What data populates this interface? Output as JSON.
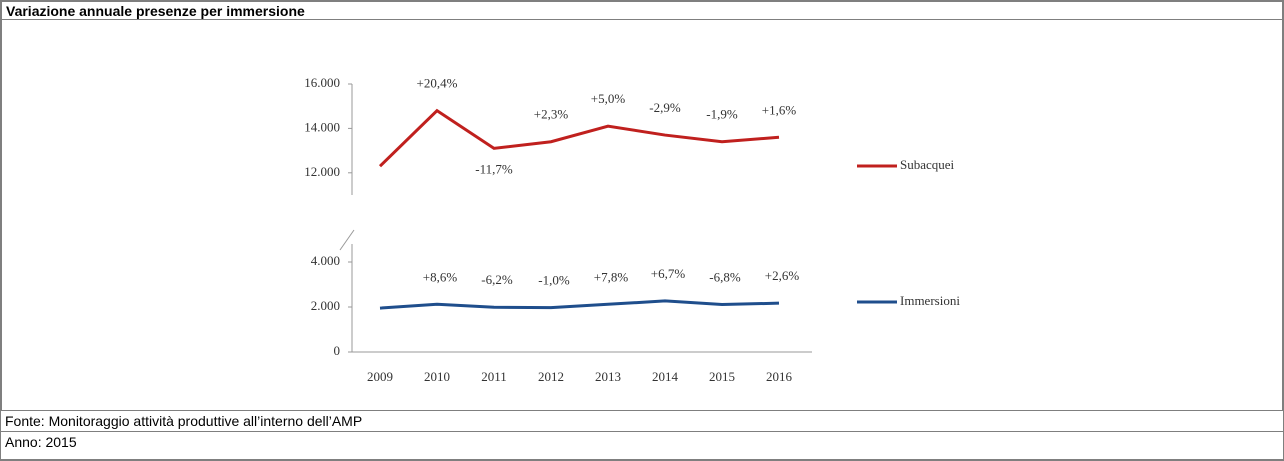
{
  "header_title": "Variazione annuale presenze per immersione",
  "source": "Fonte: Monitoraggio attività produttive all’interno dell’AMP",
  "year": "Anno: 2015",
  "chart_data": {
    "type": "line",
    "categories": [
      "2009",
      "2010",
      "2011",
      "2012",
      "2013",
      "2014",
      "2015",
      "2016"
    ],
    "ylim": [
      11000,
      16000
    ],
    "yticks": [
      {
        "value": 12000,
        "label": "12.000"
      },
      {
        "value": 14000,
        "label": "14.000"
      },
      {
        "value": 16000,
        "label": "16.000"
      }
    ],
    "y2lim": [
      0,
      4800
    ],
    "y2ticks": [
      0,
      {
        "value": 2000,
        "label": "2.000"
      },
      {
        "value": 4000,
        "label": "4.000"
      }
    ],
    "series": [
      {
        "name": "Subacquei",
        "color": "#c0201e",
        "values": [
          12300,
          14800,
          13100,
          13400,
          14100,
          13700,
          13400,
          13600
        ],
        "annotations": [
          null,
          "+20,4%",
          "-11,7%",
          "+2,3%",
          "+5,0%",
          "-2,9%",
          "-1,9%",
          "+1,6%"
        ]
      },
      {
        "name": "Immersioni",
        "color": "#1f4e8c",
        "axis": "y2",
        "values": [
          1950,
          2120,
          1990,
          1970,
          2120,
          2270,
          2110,
          2170
        ],
        "annotations": [
          null,
          "+8,6%",
          "-6,2%",
          "-1,0%",
          "+7,8%",
          "+6,7%",
          "-6,8%",
          "+2,6%"
        ]
      }
    ]
  }
}
